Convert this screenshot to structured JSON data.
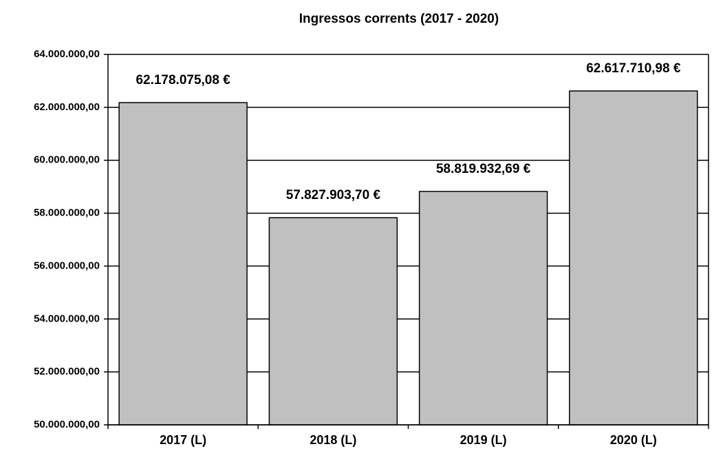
{
  "chart_data": {
    "type": "bar",
    "title": "Ingressos corrents (2017 - 2020)",
    "categories": [
      "2017 (L)",
      "2018 (L)",
      "2019 (L)",
      "2020 (L)"
    ],
    "values": [
      62178075.08,
      57827903.7,
      58819932.69,
      62617710.98
    ],
    "value_labels": [
      "62.178.075,08 €",
      "57.827.903,70 €",
      "58.819.932,69 €",
      "62.617.710,98 €"
    ],
    "color": "#c0c0c0",
    "ylim": [
      50000000,
      64000000
    ],
    "yticks": [
      {
        "value": 50000000,
        "label": "50.000.000,00"
      },
      {
        "value": 52000000,
        "label": "52.000.000,00"
      },
      {
        "value": 54000000,
        "label": "54.000.000,00"
      },
      {
        "value": 56000000,
        "label": "56.000.000,00"
      },
      {
        "value": 58000000,
        "label": "58.000.000,00"
      },
      {
        "value": 60000000,
        "label": "60.000.000,00"
      },
      {
        "value": 62000000,
        "label": "62.000.000,00"
      },
      {
        "value": 64000000,
        "label": "64.000.000,00"
      }
    ],
    "grid": true
  }
}
